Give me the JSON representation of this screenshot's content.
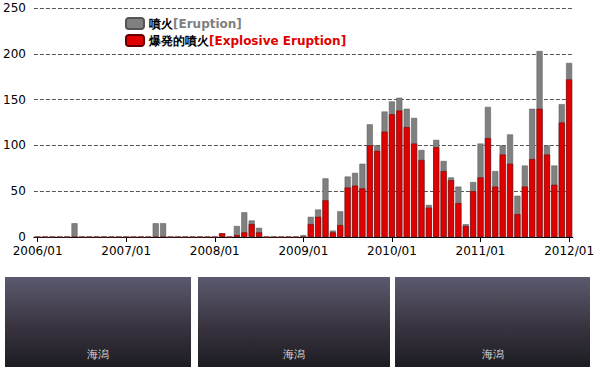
{
  "chart_data": {
    "type": "bar",
    "categories": [
      "2006/01",
      null,
      null,
      null,
      null,
      null,
      null,
      null,
      null,
      null,
      null,
      null,
      "2007/01",
      null,
      null,
      null,
      null,
      null,
      null,
      null,
      null,
      null,
      null,
      null,
      "2008/01",
      null,
      null,
      null,
      null,
      null,
      null,
      null,
      null,
      null,
      null,
      null,
      "2009/01",
      null,
      null,
      null,
      null,
      null,
      null,
      null,
      null,
      null,
      null,
      null,
      "2010/01",
      null,
      null,
      null,
      null,
      null,
      null,
      null,
      null,
      null,
      null,
      null,
      "2011/01",
      null,
      null,
      null,
      null,
      null,
      null,
      null,
      null,
      null,
      null,
      null,
      "2012/01"
    ],
    "series": [
      {
        "name": "噴火[Eruption]",
        "color": "#808080",
        "values": [
          0,
          0,
          0,
          0,
          0,
          15,
          0,
          0,
          0,
          0,
          0,
          0,
          0,
          0,
          0,
          0,
          15,
          15,
          0,
          0,
          0,
          0,
          0,
          0,
          0,
          4,
          0,
          12,
          27,
          18,
          10,
          0,
          0,
          0,
          0,
          0,
          2,
          22,
          30,
          64,
          7,
          28,
          66,
          70,
          80,
          123,
          100,
          137,
          148,
          152,
          140,
          130,
          95,
          35,
          106,
          83,
          65,
          55,
          14,
          60,
          102,
          142,
          72,
          100,
          112,
          45,
          78,
          140,
          203,
          100,
          78,
          145,
          190
        ]
      },
      {
        "name": "爆発的噴火[Explosive Eruption]",
        "color": "#e00000",
        "values": [
          0,
          0,
          0,
          0,
          0,
          0,
          0,
          0,
          0,
          0,
          0,
          0,
          0,
          0,
          0,
          0,
          0,
          0,
          0,
          0,
          0,
          0,
          0,
          0,
          0,
          4,
          0,
          2,
          5,
          14,
          5,
          0,
          0,
          0,
          0,
          0,
          0,
          14,
          22,
          40,
          5,
          13,
          54,
          56,
          53,
          100,
          94,
          115,
          134,
          138,
          120,
          102,
          84,
          32,
          98,
          72,
          62,
          37,
          12,
          50,
          65,
          108,
          55,
          90,
          80,
          25,
          55,
          85,
          140,
          90,
          57,
          125,
          172
        ]
      }
    ],
    "ylim": [
      0,
      250
    ],
    "yticks": [
      0,
      50,
      100,
      150,
      200,
      250
    ],
    "grid": true,
    "legend": "top",
    "annotations": [
      "海潟",
      "海潟",
      "海潟"
    ]
  }
}
